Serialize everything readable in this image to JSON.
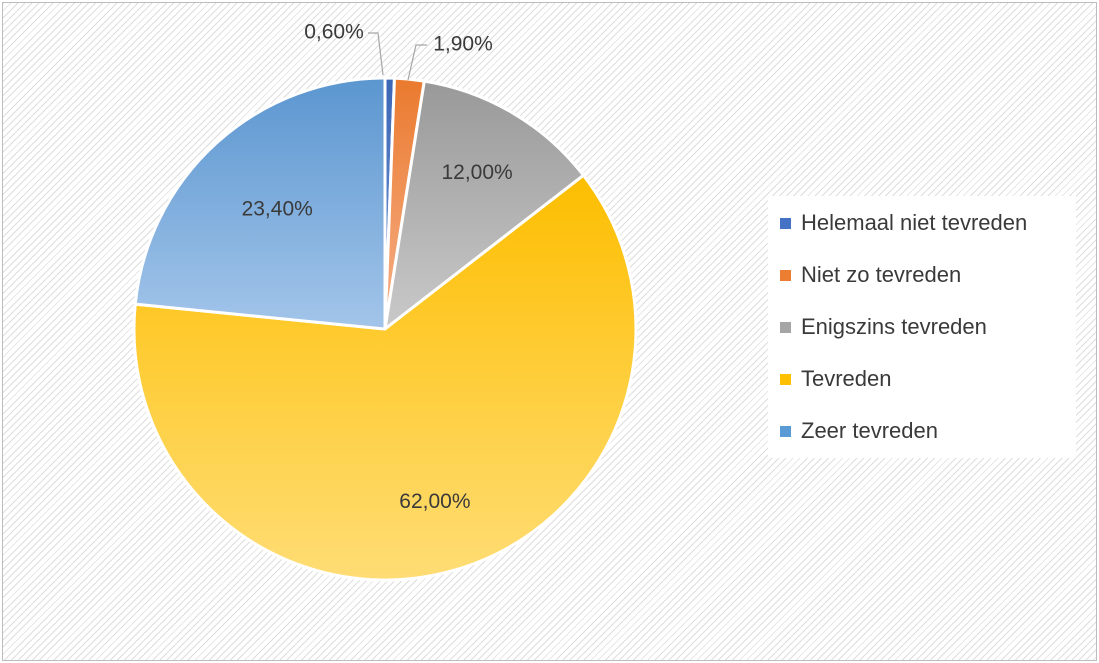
{
  "chart_data": {
    "type": "pie",
    "title": "",
    "categories": [
      "Helemaal niet tevreden",
      "Niet zo tevreden",
      "Enigszins tevreden",
      "Tevreden",
      "Zeer tevreden"
    ],
    "values": [
      0.6,
      1.9,
      12.0,
      62.0,
      23.4
    ],
    "data_labels": [
      "0,60%",
      "1,90%",
      "12,00%",
      "62,00%",
      "23,40%"
    ],
    "colors": [
      "#4472C4",
      "#ED7D31",
      "#A5A5A5",
      "#FFC000",
      "#5B9BD5"
    ],
    "legend": "right",
    "grid": false
  },
  "legend": {
    "items": [
      "Helemaal niet tevreden",
      "Niet zo tevreden",
      "Enigszins tevreden",
      "Tevreden",
      "Zeer tevreden"
    ]
  }
}
